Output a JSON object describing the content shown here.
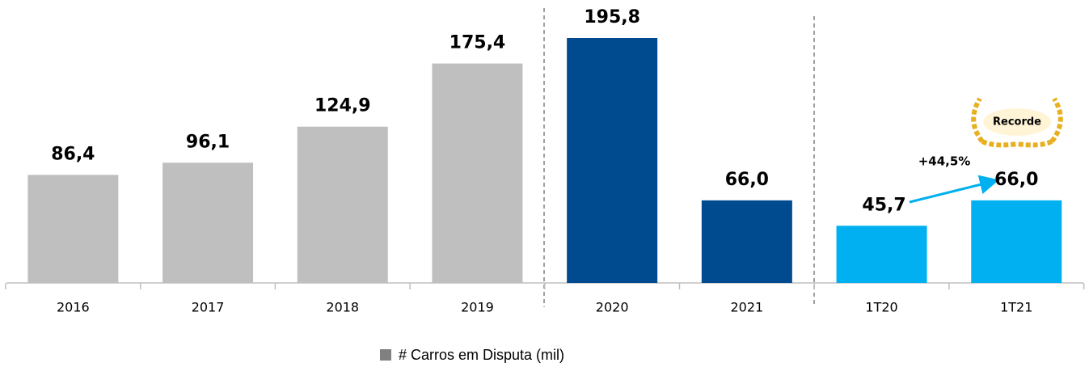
{
  "chart_data": {
    "type": "bar",
    "categories": [
      "2016",
      "2017",
      "2018",
      "2019",
      "2020",
      "2021",
      "1T20",
      "1T21"
    ],
    "series": [
      {
        "name": "# Carros em Disputa (mil)",
        "color": "#808080",
        "values": [
          86.4,
          96.1,
          124.9,
          175.4,
          195.8,
          66.0,
          45.7,
          66.0
        ],
        "value_labels": [
          "86,4",
          "96,1",
          "124,9",
          "175,4",
          "195,8",
          "66,0",
          "45,7",
          "66,0"
        ],
        "colors": [
          "#bfbfbf",
          "#bfbfbf",
          "#bfbfbf",
          "#bfbfbf",
          "#004a8f",
          "#004a8f",
          "#00b0f0",
          "#00b0f0"
        ]
      }
    ],
    "annotations": [
      "+44,5%",
      "Recorde"
    ],
    "legend": "bottom"
  }
}
